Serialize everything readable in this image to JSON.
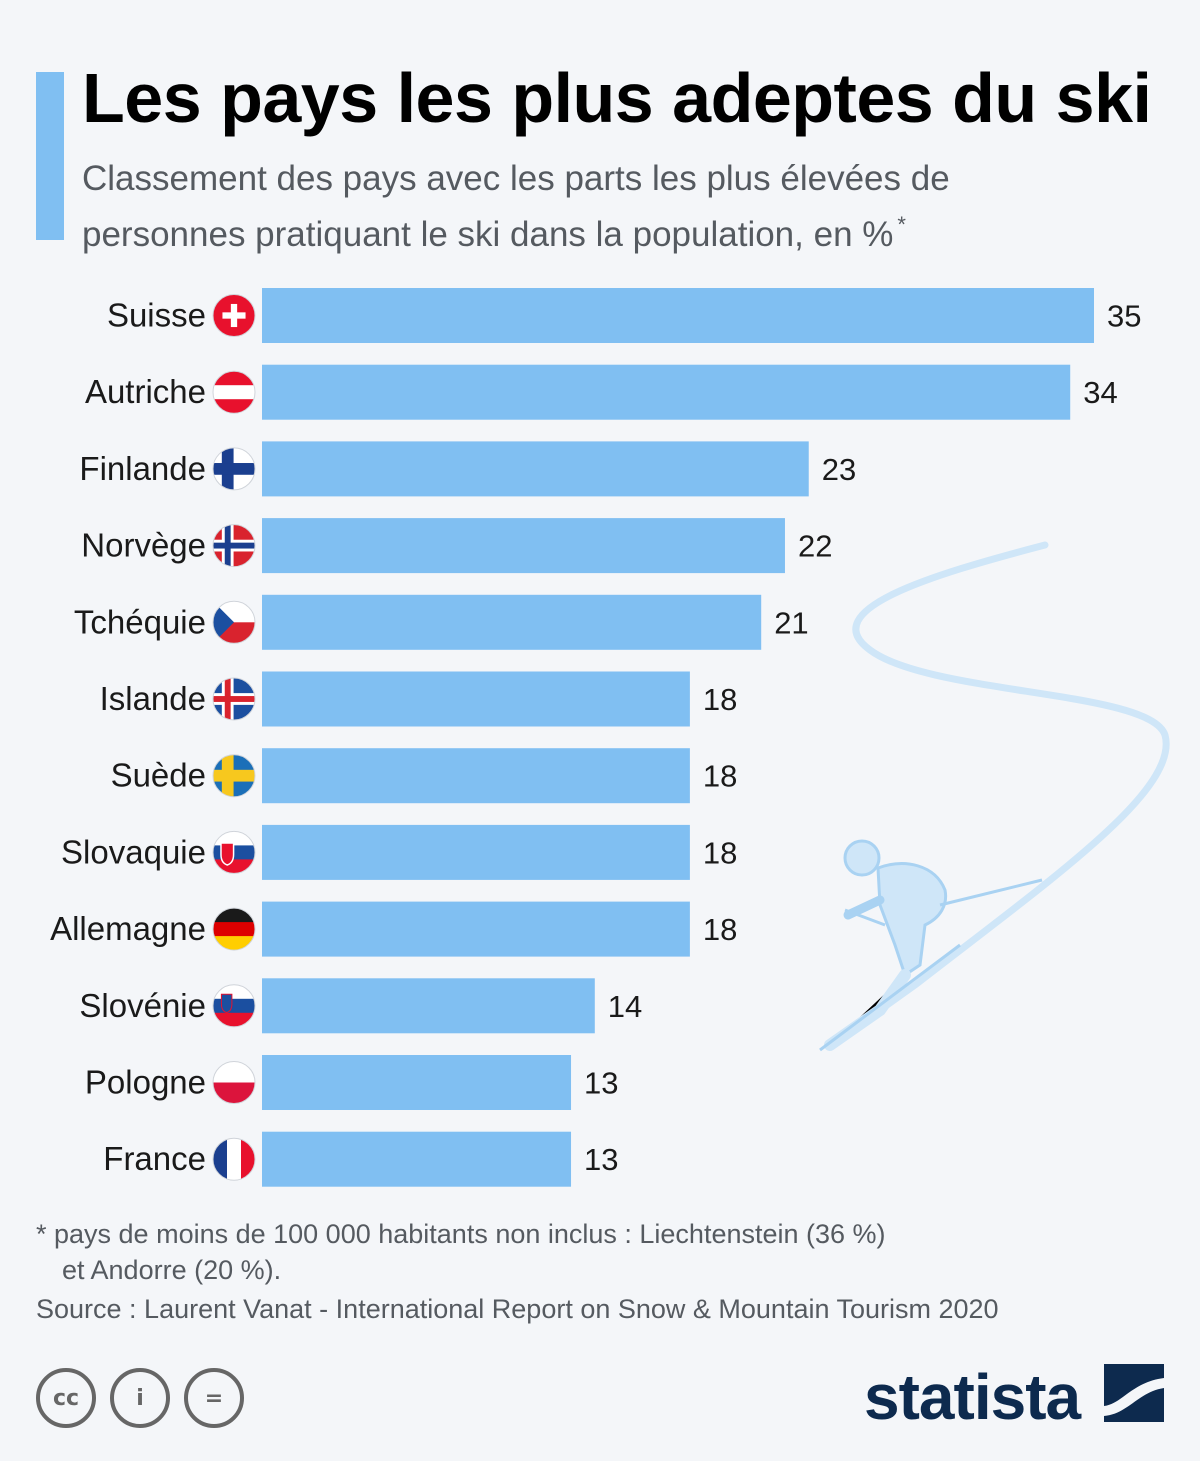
{
  "title": "Les pays les plus adeptes du ski",
  "subtitle": "Classement des pays avec les parts les plus élevées de personnes pratiquant le ski dans la population, en %",
  "subtitle_mark": "*",
  "chart_data": {
    "type": "bar",
    "orientation": "horizontal",
    "title": "Les pays les plus adeptes du ski",
    "categories": [
      "Suisse",
      "Autriche",
      "Finlande",
      "Norvège",
      "Tchéquie",
      "Islande",
      "Suède",
      "Slovaquie",
      "Allemagne",
      "Slovénie",
      "Pologne",
      "France"
    ],
    "values": [
      35,
      34,
      23,
      22,
      21,
      18,
      18,
      18,
      18,
      14,
      13,
      13
    ],
    "flags": [
      "ch-flag-icon",
      "at-flag-icon",
      "fi-flag-icon",
      "no-flag-icon",
      "cz-flag-icon",
      "is-flag-icon",
      "se-flag-icon",
      "sk-flag-icon",
      "de-flag-icon",
      "si-flag-icon",
      "pl-flag-icon",
      "fr-flag-icon"
    ],
    "xlim": [
      0,
      35
    ],
    "ylabel": "",
    "xlabel": "",
    "unit": "%",
    "bar_color": "#80bff2"
  },
  "footnote": {
    "line1": "* pays de moins de 100 000 habitants non inclus : Liechtenstein (36 %)",
    "line2": "et Andorre (20 %)."
  },
  "source": "Source : Laurent Vanat - International Report on Snow & Mountain Tourism 2020",
  "brand": "statista",
  "license_icons": [
    "cc",
    "i",
    "="
  ],
  "colors": {
    "accent": "#80bff2",
    "brand": "#0d2a4e",
    "text_muted": "#555a60",
    "skier": "#cfe6f8"
  }
}
